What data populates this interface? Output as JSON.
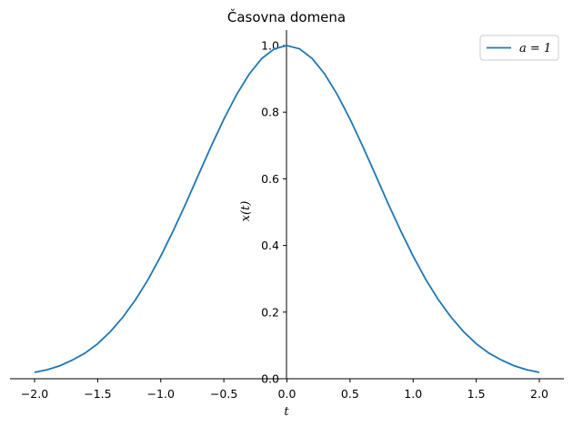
{
  "chart_data": {
    "type": "line",
    "title": "Časovna domena",
    "xlabel": "t",
    "ylabel": "x(t)",
    "xlim": [
      -2.0,
      2.0
    ],
    "ylim": [
      0.0,
      1.0
    ],
    "x_ticks": [
      "−2.0",
      "−1.5",
      "−1.0",
      "−0.5",
      "0.0",
      "0.5",
      "1.0",
      "1.5",
      "2.0"
    ],
    "y_ticks": [
      "0.0",
      "0.2",
      "0.4",
      "0.6",
      "0.8",
      "1.0"
    ],
    "legend": {
      "position": "top-right",
      "entries": [
        "a = 1"
      ]
    },
    "grid": false,
    "series": [
      {
        "name": "a = 1",
        "color": "#1f77b4",
        "x": [
          -2.0,
          -1.9,
          -1.8,
          -1.7,
          -1.6,
          -1.5,
          -1.4,
          -1.3,
          -1.2,
          -1.1,
          -1.0,
          -0.9,
          -0.8,
          -0.7,
          -0.6,
          -0.5,
          -0.4,
          -0.3,
          -0.2,
          -0.1,
          0.0,
          0.1,
          0.2,
          0.3,
          0.4,
          0.5,
          0.6,
          0.7,
          0.8,
          0.9,
          1.0,
          1.1,
          1.2,
          1.3,
          1.4,
          1.5,
          1.6,
          1.7,
          1.8,
          1.9,
          2.0
        ],
        "y": [
          0.019,
          0.027,
          0.039,
          0.056,
          0.077,
          0.105,
          0.141,
          0.185,
          0.237,
          0.298,
          0.368,
          0.445,
          0.527,
          0.613,
          0.698,
          0.779,
          0.852,
          0.914,
          0.961,
          0.99,
          1.0,
          0.99,
          0.961,
          0.914,
          0.852,
          0.779,
          0.698,
          0.613,
          0.527,
          0.445,
          0.368,
          0.298,
          0.237,
          0.185,
          0.141,
          0.105,
          0.077,
          0.056,
          0.039,
          0.027,
          0.019
        ]
      }
    ]
  }
}
